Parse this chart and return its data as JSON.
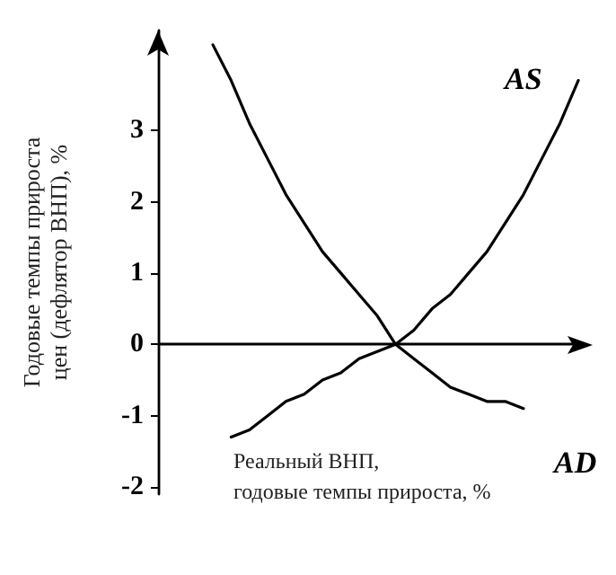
{
  "chart_data": {
    "type": "line",
    "xlabel": "Реальный ВНП,\nгодовые темпы прироста, %",
    "ylabel": "Годовые темпы прироста\nцен (дефлятор ВНП), %",
    "ref_lines": [
      {
        "axis": "y",
        "value": 0
      }
    ],
    "categories": [
      null,
      null,
      null,
      null,
      null,
      null,
      null,
      null,
      null,
      null,
      null,
      null,
      null,
      null,
      null,
      null,
      null,
      null,
      null,
      null,
      null,
      null,
      null,
      null
    ],
    "series": [
      {
        "name": "AD",
        "color": "#000000",
        "values": [
          null,
          null,
          null,
          4.2,
          3.7,
          3.1,
          2.6,
          2.1,
          1.7,
          1.3,
          1.0,
          0.7,
          0.4,
          0.0,
          -0.2,
          -0.4,
          -0.6,
          -0.7,
          -0.8,
          -0.8,
          -0.9,
          null,
          null,
          null
        ]
      },
      {
        "name": "AS",
        "color": "#000000",
        "values": [
          null,
          null,
          null,
          null,
          -1.3,
          -1.2,
          -1.0,
          -0.8,
          -0.7,
          -0.5,
          -0.4,
          -0.2,
          -0.1,
          0.0,
          0.2,
          0.5,
          0.7,
          1.0,
          1.3,
          1.7,
          2.1,
          2.6,
          3.1,
          3.7
        ]
      }
    ],
    "ylim": [
      -2.1,
      4.4
    ],
    "yticks": [
      -2,
      -1,
      0,
      1,
      2,
      3
    ],
    "tick_labels": "y",
    "grid": false,
    "legend": false,
    "marker": "none",
    "line_style": "solid"
  }
}
